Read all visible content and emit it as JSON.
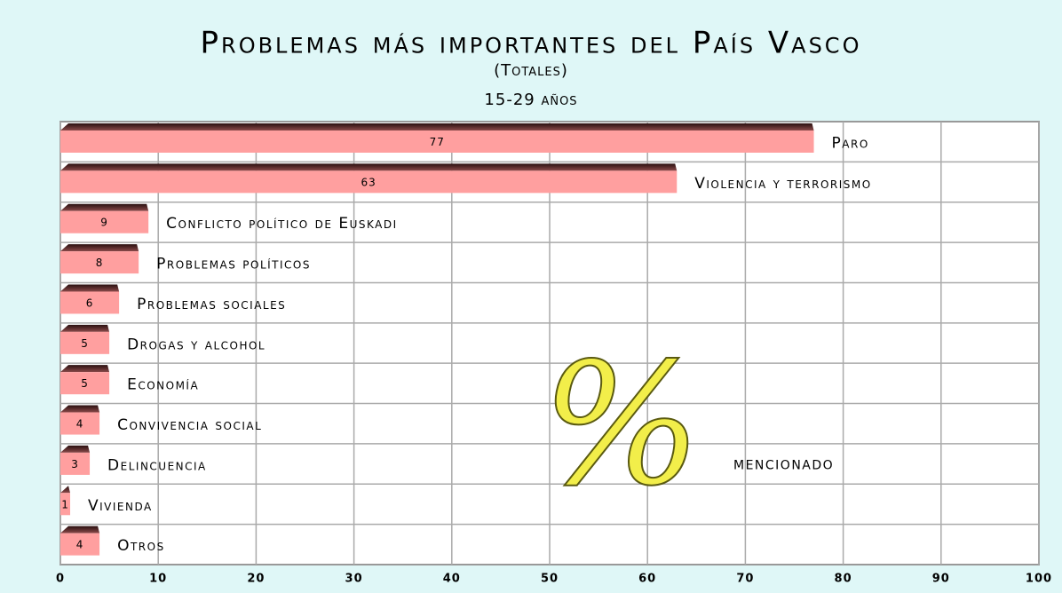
{
  "chart_data": {
    "type": "bar",
    "orientation": "horizontal",
    "title": "Problemas más importantes del País Vasco",
    "subtitle": "(Totales)",
    "subtitle2": "15-29 años",
    "categories": [
      "Paro",
      "Violencia y terrorismo",
      "Conflicto político de Euskadi",
      "Problemas políticos",
      "Problemas sociales",
      "Drogas y alcohol",
      "Economía",
      "Convivencia social",
      "Delincuencia",
      "Vivienda",
      "Otros"
    ],
    "values": [
      77,
      63,
      9,
      8,
      6,
      5,
      5,
      4,
      3,
      1,
      4
    ],
    "color": "#ff9f9f",
    "xlim": [
      0,
      100
    ],
    "xticks": [
      0,
      10,
      20,
      30,
      40,
      50,
      60,
      70,
      80,
      90,
      100
    ],
    "grid": true,
    "annotation_symbol": "%",
    "annotation": "mencionado"
  }
}
